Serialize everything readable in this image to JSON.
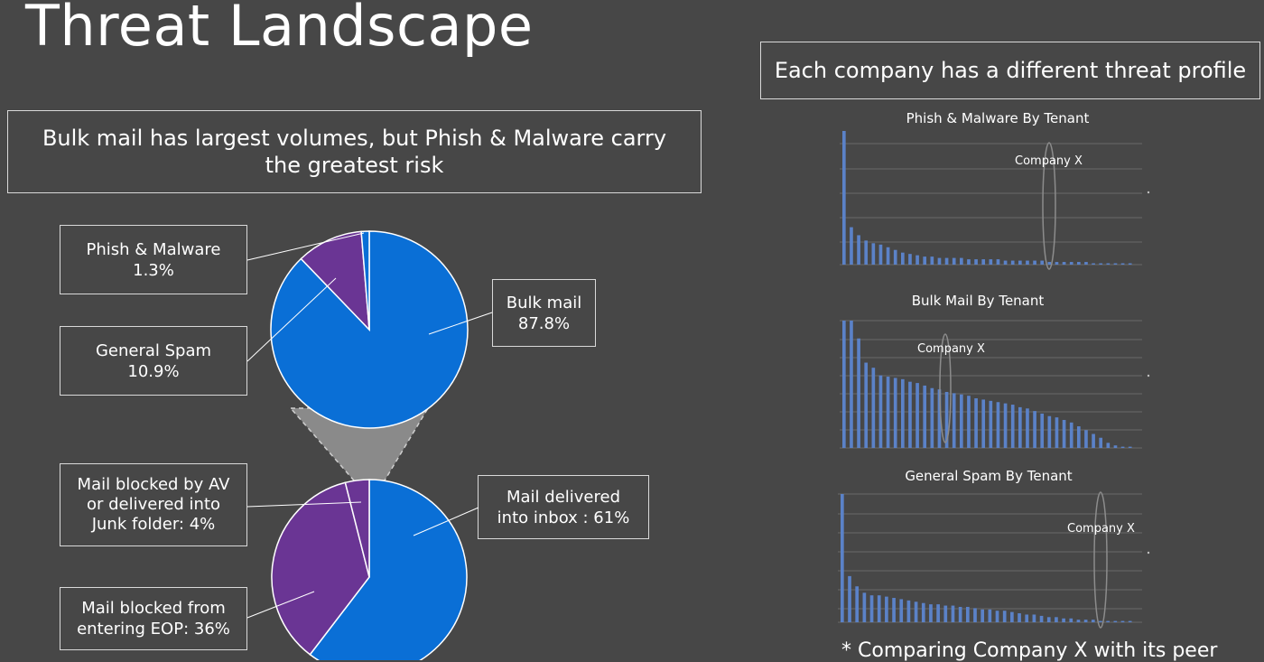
{
  "slide": {
    "title": "Threat Landscape",
    "subtitle": "Bulk mail has largest volumes, but Phish & Malware carry the greatest risk",
    "profile_heading": "Each company has a different threat profile",
    "footnote": "* Comparing Company X with its peer"
  },
  "colors": {
    "background": "#474747",
    "blue": "#0a6fd6",
    "purple": "#6a3594",
    "bar": "#5b82c8",
    "grid": "#6a6a6a"
  },
  "chart_data": [
    {
      "type": "pie",
      "id": "traffic-mix",
      "slices": [
        {
          "label": "Bulk mail",
          "value": "87.8%",
          "pct": 87.8,
          "color": "#0a6fd6"
        },
        {
          "label": "General Spam",
          "value": "10.9%",
          "pct": 10.9,
          "color": "#6a3594"
        },
        {
          "label": "Phish & Malware",
          "value": "1.3%",
          "pct": 1.3,
          "color": "#0a6fd6"
        }
      ]
    },
    {
      "type": "pie",
      "id": "phish-disposition",
      "slices": [
        {
          "label": "Mail delivered into inbox : 61%",
          "pct": 61,
          "color": "#0a6fd6"
        },
        {
          "label": "Mail blocked from entering EOP: 36%",
          "pct": 36,
          "color": "#6a3594"
        },
        {
          "label": "Mail blocked by AV or delivered into Junk folder: 4%",
          "pct": 4,
          "color": "#6a3594"
        }
      ]
    },
    {
      "type": "bar",
      "title": "Phish & Malware By Tenant",
      "annotation": "Company X",
      "ylim": [
        0,
        100
      ],
      "values": [
        100,
        28,
        22,
        18,
        16,
        15,
        13,
        11,
        9,
        8,
        7,
        6,
        6,
        5,
        5,
        5,
        5,
        4,
        4,
        4,
        4,
        4,
        3,
        3,
        3,
        3,
        3,
        3,
        2,
        2,
        2,
        2,
        2,
        2,
        1,
        1,
        1,
        1,
        1,
        1
      ]
    },
    {
      "type": "bar",
      "title": "Bulk Mail By Tenant",
      "annotation": "Company X",
      "ylim": [
        0,
        100
      ],
      "values": [
        100,
        100,
        86,
        67,
        63,
        57,
        56,
        55,
        54,
        52,
        51,
        49,
        47,
        46,
        44,
        43,
        42,
        41,
        39,
        38,
        37,
        36,
        35,
        34,
        32,
        31,
        29,
        27,
        25,
        24,
        22,
        20,
        17,
        14,
        11,
        8,
        4,
        2,
        1,
        1
      ]
    },
    {
      "type": "bar",
      "title": "General Spam By Tenant",
      "annotation": "Company X",
      "ylim": [
        0,
        100
      ],
      "values": [
        100,
        36,
        28,
        23,
        21,
        21,
        20,
        19,
        18,
        17,
        16,
        15,
        14,
        14,
        13,
        13,
        12,
        12,
        11,
        10,
        10,
        9,
        9,
        8,
        7,
        6,
        6,
        5,
        4,
        4,
        3,
        3,
        2,
        2,
        2,
        1,
        1,
        1,
        1,
        1
      ]
    }
  ],
  "labels": {
    "phish_malware": [
      "Phish & Malware",
      "1.3%"
    ],
    "general_spam": [
      "General Spam",
      "10.9%"
    ],
    "bulk_mail": [
      "Bulk mail",
      "87.8%"
    ],
    "blocked_av": [
      "Mail blocked by AV",
      "or delivered into",
      "Junk folder: 4%"
    ],
    "delivered_inbox": [
      "Mail delivered",
      "into inbox : 61%"
    ],
    "blocked_eop": [
      "Mail blocked from",
      "entering EOP: 36%"
    ]
  }
}
